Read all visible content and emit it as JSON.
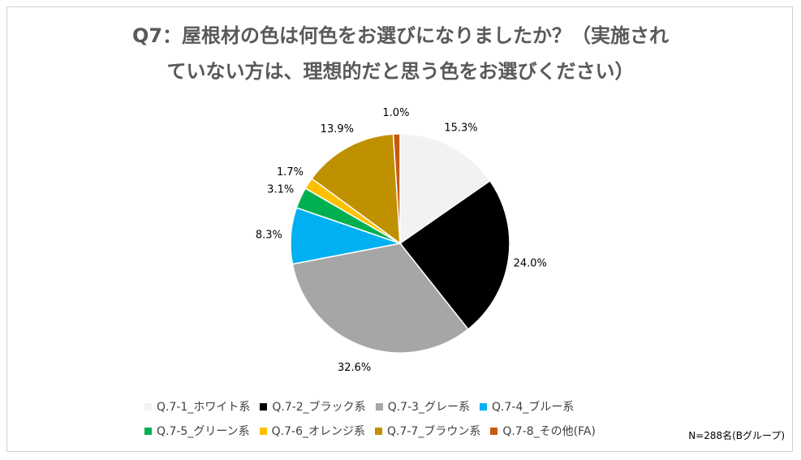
{
  "chart_data": {
    "type": "pie",
    "title_lines": [
      "Q7：屋根材の色は何色をお選びになりましたか？（実施され",
      "ていない方は、理想的だと思う色をお選びください）"
    ],
    "categories": [
      "Q.7-1_ホワイト系",
      "Q.7-2_ブラック系",
      "Q.7-3_グレー系",
      "Q.7-4_ブルー系",
      "Q.7-5_グリーン系",
      "Q.7-6_オレンジ系",
      "Q.7-7_ブラウン系",
      "Q.7-8_その他(FA)"
    ],
    "values": [
      15.3,
      24.0,
      32.6,
      8.3,
      3.1,
      1.7,
      13.9,
      1.0
    ],
    "data_labels": [
      "15.3%",
      "24.0%",
      "32.6%",
      "8.3%",
      "3.1%",
      "1.7%",
      "13.9%",
      "1.0%"
    ],
    "colors": [
      "#f2f2f2",
      "#000000",
      "#a6a6a6",
      "#00b0f0",
      "#00b050",
      "#ffc000",
      "#bf9000",
      "#c55a11"
    ],
    "legend_position": "bottom",
    "note": "N=288名(Bグループ)"
  }
}
